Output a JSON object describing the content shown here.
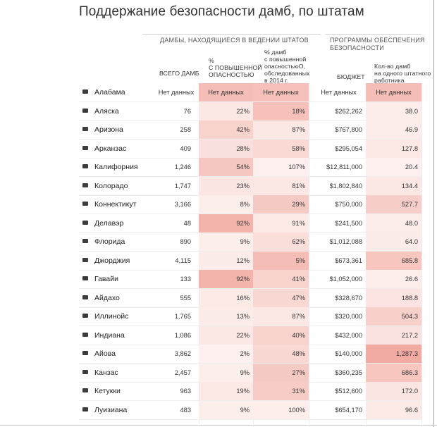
{
  "title": "Поддержание безопасности дамб, по штатам",
  "groups": {
    "state_managed": "ДАМБЫ, НАХОДЯЩИЕСЯ В ВЕДЕНИИ ШТАТОВ",
    "safety_programs": "ПРОГРАММЫ ОБЕСПЕЧЕНИЯ БЕЗОПАСНОСТИ"
  },
  "headers": {
    "total": "ВСЕГО ДАМБ",
    "pct_high_hazard": "%\nС ПОВЫШЕННОЙ\nОПАСНОСТЬЮ",
    "pct_inspected": "% дамб\nс повышенной\nопасностьюO,\nобследованных\nв 2014 г.",
    "budget": "БЮДЖЕТ",
    "dams_per_employee": "Кол-во дамб\nна одного штатного\nработника"
  },
  "colors": {
    "heat_max": "#ee9a8f",
    "heat_min": "#fdf1ef",
    "text": "#333333",
    "rule": "#cfcfcf"
  },
  "rows": [
    {
      "state": "Алабама",
      "total": "Нет данных",
      "pct": "Нет данных",
      "insp": "Нет данных",
      "budget": "Нет данных",
      "dpe": "Нет данных",
      "h": [
        0,
        0.6,
        0.55,
        0,
        0.6
      ],
      "icon": "alabama-icon"
    },
    {
      "state": "Аляска",
      "total": "76",
      "pct": "22%",
      "insp": "18%",
      "budget": "$262,262",
      "dpe": "38.0",
      "h": [
        0,
        0.12,
        0.55,
        0,
        0.05
      ],
      "icon": "alaska-icon"
    },
    {
      "state": "Аризона",
      "total": "258",
      "pct": "42%",
      "insp": "87%",
      "budget": "$767,800",
      "dpe": "46.9",
      "h": [
        0,
        0.35,
        0.12,
        0,
        0.05
      ],
      "icon": "arizona-icon"
    },
    {
      "state": "Арканзас",
      "total": "409",
      "pct": "28%",
      "insp": "58%",
      "budget": "$295,054",
      "dpe": "127.8",
      "h": [
        0,
        0.2,
        0.28,
        0,
        0.1
      ],
      "icon": "arkansas-icon"
    },
    {
      "state": "Калифорния",
      "total": "1,246",
      "pct": "54%",
      "insp": "107%",
      "budget": "$12,811,000",
      "dpe": "20.4",
      "h": [
        0,
        0.48,
        0.02,
        0,
        0.02
      ],
      "icon": "california-icon"
    },
    {
      "state": "Колорадо",
      "total": "1,747",
      "pct": "23%",
      "insp": "81%",
      "budget": "$1,802,840",
      "dpe": "134.4",
      "h": [
        0,
        0.13,
        0.12,
        0,
        0.11
      ],
      "icon": "colorado-icon"
    },
    {
      "state": "Коннектикут",
      "total": "3,166",
      "pct": "8%",
      "insp": "29%",
      "budget": "$750,000",
      "dpe": "527.7",
      "h": [
        0,
        0.04,
        0.45,
        0,
        0.4
      ],
      "icon": "connecticut-icon"
    },
    {
      "state": "Делавэр",
      "total": "48",
      "pct": "92%",
      "insp": "91%",
      "budget": "$241,500",
      "dpe": "48.0",
      "h": [
        0,
        0.7,
        0.08,
        0,
        0.05
      ],
      "icon": "delaware-icon"
    },
    {
      "state": "Флорида",
      "total": "890",
      "pct": "9%",
      "insp": "62%",
      "budget": "$1,012,088",
      "dpe": "64.0",
      "h": [
        0,
        0.04,
        0.22,
        0,
        0.06
      ],
      "icon": "florida-icon"
    },
    {
      "state": "Джорджия",
      "total": "4,115",
      "pct": "12%",
      "insp": "5%",
      "budget": "$673,361",
      "dpe": "685.8",
      "h": [
        0,
        0.06,
        0.6,
        0,
        0.5
      ],
      "icon": "georgia-icon"
    },
    {
      "state": "Гавайи",
      "total": "133",
      "pct": "92%",
      "insp": "41%",
      "budget": "$1,052,000",
      "dpe": "26.6",
      "h": [
        0,
        0.7,
        0.35,
        0,
        0.03
      ],
      "icon": "hawaii-icon"
    },
    {
      "state": "Айдахо",
      "total": "555",
      "pct": "16%",
      "insp": "47%",
      "budget": "$328,670",
      "dpe": "188.8",
      "h": [
        0,
        0.08,
        0.3,
        0,
        0.15
      ],
      "icon": "idaho-icon"
    },
    {
      "state": "Иллинойс",
      "total": "1,765",
      "pct": "13%",
      "insp": "87%",
      "budget": "$320,000",
      "dpe": "504.3",
      "h": [
        0,
        0.06,
        0.12,
        0,
        0.38
      ],
      "icon": "illinois-icon"
    },
    {
      "state": "Индиана",
      "total": "1,086",
      "pct": "22%",
      "insp": "40%",
      "budget": "$432,000",
      "dpe": "217.2",
      "h": [
        0,
        0.12,
        0.36,
        0,
        0.17
      ],
      "icon": "indiana-icon"
    },
    {
      "state": "Айова",
      "total": "3,862",
      "pct": "2%",
      "insp": "48%",
      "budget": "$140,000",
      "dpe": "1,287.3",
      "h": [
        0,
        0.01,
        0.3,
        0,
        0.8
      ],
      "icon": "iowa-icon"
    },
    {
      "state": "Канзас",
      "total": "2,457",
      "pct": "9%",
      "insp": "27%",
      "budget": "$360,235",
      "dpe": "686.3",
      "h": [
        0,
        0.04,
        0.45,
        0,
        0.5
      ],
      "icon": "kansas-icon"
    },
    {
      "state": "Кетукки",
      "total": "963",
      "pct": "19%",
      "insp": "31%",
      "budget": "$512,600",
      "dpe": "172.0",
      "h": [
        0,
        0.1,
        0.42,
        0,
        0.14
      ],
      "icon": "kentucky-icon"
    },
    {
      "state": "Луизиана",
      "total": "483",
      "pct": "9%",
      "insp": "100%",
      "budget": "$654,170",
      "dpe": "96.6",
      "h": [
        0,
        0.04,
        0.03,
        0,
        0.08
      ],
      "icon": "louisiana-icon"
    }
  ]
}
